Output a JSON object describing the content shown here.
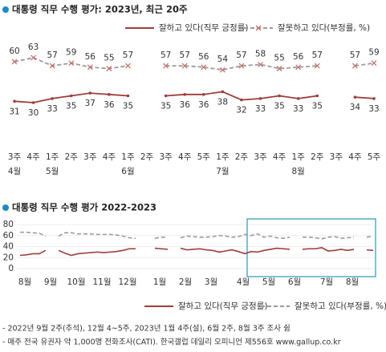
{
  "chart_data": [
    {
      "type": "line",
      "title": "대통령 직무 수행 평가: 2023년, 최근 20주",
      "categories": [
        "3주",
        "4주",
        "1주",
        "2주",
        "3주",
        "4주",
        "1주",
        "2주",
        "3주",
        "4주",
        "5주",
        "1주",
        "2주",
        "3주",
        "4주",
        "1주",
        "2주",
        "3주",
        "4주",
        "5주"
      ],
      "month_categories": [
        "4월",
        null,
        "5월",
        null,
        null,
        null,
        "6월",
        null,
        null,
        null,
        null,
        "7월",
        null,
        null,
        null,
        "8월",
        null,
        null,
        null,
        null
      ],
      "ylim": [
        20,
        70
      ],
      "series": [
        {
          "name": "잘하고 있다(직무 긍정률)",
          "color": "#9e3d3a",
          "dashed": false,
          "values": [
            31,
            30,
            33,
            35,
            37,
            36,
            35,
            null,
            35,
            36,
            36,
            38,
            32,
            33,
            35,
            33,
            35,
            null,
            34,
            33
          ]
        },
        {
          "name": "잘못하고 있다(부정률, %)",
          "color": "#9a9a9a",
          "marker_color": "#c8716c",
          "dashed": true,
          "values": [
            60,
            63,
            57,
            59,
            56,
            55,
            57,
            null,
            57,
            57,
            56,
            54,
            57,
            58,
            55,
            56,
            57,
            null,
            57,
            59
          ]
        }
      ]
    },
    {
      "type": "line",
      "title": "대통령 직무 수행 평가 2022-2023",
      "categories": [
        "8월",
        null,
        null,
        null,
        "9월",
        null,
        null,
        null,
        "10월",
        null,
        null,
        null,
        "11월",
        null,
        null,
        null,
        "12월",
        null,
        null,
        null,
        null,
        "1월",
        null,
        null,
        null,
        "2월",
        null,
        null,
        null,
        "3월",
        null,
        null,
        null,
        null,
        "4월",
        null,
        null,
        null,
        "5월",
        null,
        null,
        null,
        "6월",
        null,
        null,
        null,
        null,
        "7월",
        null,
        null,
        null,
        "8월",
        null,
        null,
        null,
        null
      ],
      "ylim": [
        0,
        80
      ],
      "yticks": [
        0,
        20,
        40,
        60,
        80
      ],
      "grid": true,
      "series": [
        {
          "name": "잘하고 있다(직무 긍정률)",
          "color": "#9e3d3a",
          "dashed": false,
          "values": [
            24,
            25,
            27,
            27,
            33,
            null,
            33,
            28,
            24,
            27,
            28,
            29,
            30,
            29,
            30,
            31,
            33,
            36,
            36,
            null,
            null,
            37,
            36,
            35,
            null,
            37,
            34,
            35,
            36,
            34,
            33,
            30,
            32,
            34,
            31,
            27,
            31,
            30,
            33,
            35,
            37,
            36,
            35,
            null,
            35,
            36,
            36,
            38,
            32,
            33,
            35,
            33,
            35,
            null,
            34,
            33
          ]
        },
        {
          "name": "잘못하고 있다(부정률, %)",
          "color": "#9a9a9a",
          "dashed": true,
          "values": [
            66,
            66,
            65,
            64,
            59,
            null,
            59,
            65,
            65,
            63,
            63,
            63,
            62,
            62,
            62,
            61,
            59,
            56,
            55,
            null,
            null,
            55,
            57,
            57,
            null,
            56,
            59,
            58,
            57,
            57,
            58,
            60,
            59,
            57,
            58,
            62,
            60,
            63,
            57,
            59,
            56,
            55,
            57,
            null,
            57,
            57,
            56,
            54,
            57,
            58,
            55,
            56,
            57,
            null,
            57,
            59
          ]
        }
      ]
    }
  ],
  "notes": [
    "- 2022년 9월 2주(추석), 12월 4~5주, 2023년 1월 4주(설), 6월 2주, 8월 3주 조사 쉼",
    "- 매주 전국 유권자 약 1,000명 전화조사(CATI). 한국갤럽 데일리 오피니언 제556호 www.gallup.co.kr"
  ]
}
